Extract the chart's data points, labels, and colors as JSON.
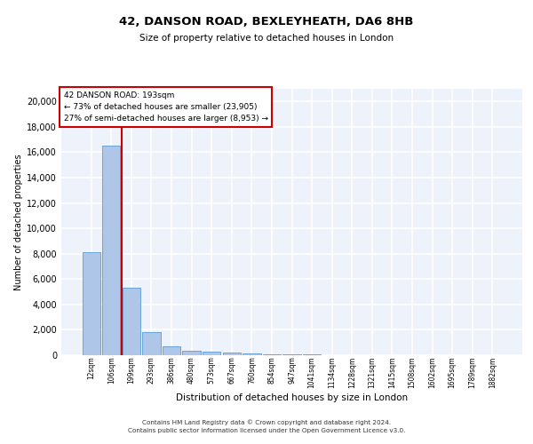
{
  "title": "42, DANSON ROAD, BEXLEYHEATH, DA6 8HB",
  "subtitle": "Size of property relative to detached houses in London",
  "xlabel": "Distribution of detached houses by size in London",
  "ylabel": "Number of detached properties",
  "bar_labels": [
    "12sqm",
    "106sqm",
    "199sqm",
    "293sqm",
    "386sqm",
    "480sqm",
    "573sqm",
    "667sqm",
    "760sqm",
    "854sqm",
    "947sqm",
    "1041sqm",
    "1134sqm",
    "1228sqm",
    "1321sqm",
    "1415sqm",
    "1508sqm",
    "1602sqm",
    "1695sqm",
    "1789sqm",
    "1882sqm"
  ],
  "bar_values": [
    8100,
    16500,
    5300,
    1800,
    700,
    350,
    270,
    200,
    170,
    100,
    60,
    40,
    25,
    15,
    10,
    8,
    6,
    5,
    4,
    3,
    2
  ],
  "bar_color": "#aec6e8",
  "bar_edge_color": "#5b9bd5",
  "property_label": "42 DANSON ROAD: 193sqm",
  "annotation_line1": "← 73% of detached houses are smaller (23,905)",
  "annotation_line2": "27% of semi-detached houses are larger (8,953) →",
  "property_line_color": "#cc0000",
  "annotation_box_color": "#cc0000",
  "ylim": [
    0,
    21000
  ],
  "yticks": [
    0,
    2000,
    4000,
    6000,
    8000,
    10000,
    12000,
    14000,
    16000,
    18000,
    20000
  ],
  "footer_line1": "Contains HM Land Registry data © Crown copyright and database right 2024.",
  "footer_line2": "Contains public sector information licensed under the Open Government Licence v3.0.",
  "bg_color": "#eef2fa",
  "grid_color": "#ffffff"
}
